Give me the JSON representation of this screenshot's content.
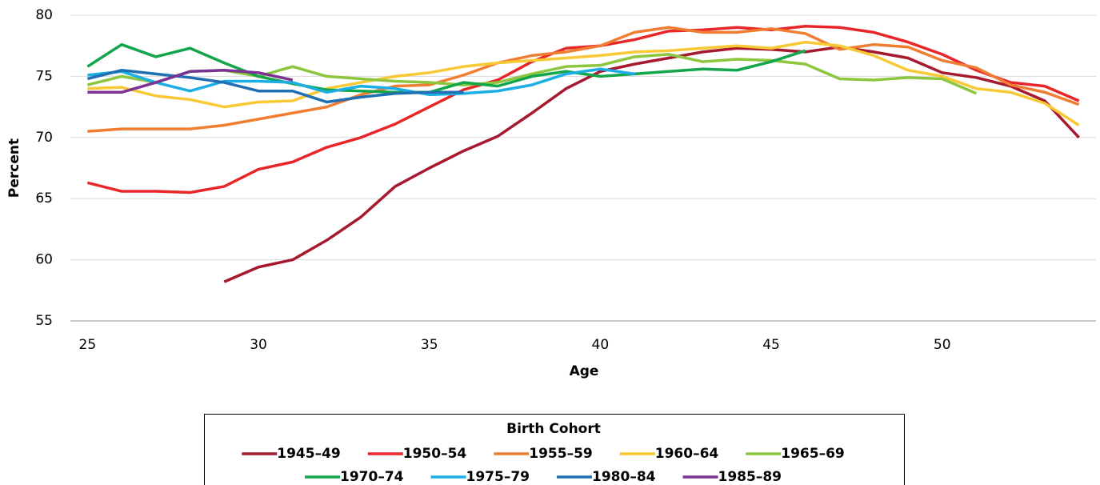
{
  "chart_data": {
    "type": "line",
    "y_label": "Percent",
    "x_label": "Age",
    "legend_title": "Birth Cohort",
    "x": [
      25,
      26,
      27,
      28,
      29,
      30,
      31,
      32,
      33,
      34,
      35,
      36,
      37,
      38,
      39,
      40,
      41,
      42,
      43,
      44,
      45,
      46,
      47,
      48,
      49,
      50,
      51,
      52,
      53,
      54
    ],
    "xlim": [
      24.5,
      54.5
    ],
    "xticks": [
      25,
      30,
      35,
      40,
      45,
      50
    ],
    "ylim": [
      55,
      80
    ],
    "yticks": [
      55,
      60,
      65,
      70,
      75,
      80
    ],
    "grid": true,
    "series": [
      {
        "name": "1945–49",
        "color": "#a6192e",
        "values": [
          null,
          null,
          null,
          null,
          58.2,
          59.4,
          60.0,
          61.6,
          63.5,
          66.0,
          67.5,
          68.9,
          70.1,
          72.0,
          74.0,
          75.4,
          76.0,
          76.5,
          77.0,
          77.3,
          77.2,
          77.0,
          77.4,
          77.0,
          76.5,
          75.3,
          74.9,
          74.2,
          73.0,
          70.0
        ]
      },
      {
        "name": "1950–54",
        "color": "#e8262a",
        "values": [
          66.3,
          65.6,
          65.6,
          65.5,
          66.0,
          67.4,
          68.0,
          69.2,
          70.0,
          71.1,
          72.5,
          73.9,
          74.7,
          76.2,
          77.3,
          77.5,
          78.0,
          78.7,
          78.8,
          79.0,
          78.8,
          79.1,
          79.0,
          78.6,
          77.8,
          76.8,
          75.5,
          74.5,
          74.2,
          73.0
        ]
      },
      {
        "name": "1955–59",
        "color": "#ef7d32",
        "values": [
          70.5,
          70.7,
          70.7,
          70.7,
          71.0,
          71.5,
          72.0,
          72.5,
          73.5,
          74.2,
          74.3,
          75.1,
          76.1,
          76.7,
          77.0,
          77.5,
          78.6,
          79.0,
          78.6,
          78.6,
          78.9,
          78.5,
          77.2,
          77.6,
          77.4,
          76.3,
          75.7,
          74.3,
          73.7,
          72.7
        ]
      },
      {
        "name": "1960–64",
        "color": "#f9c935",
        "values": [
          74.0,
          74.1,
          73.4,
          73.1,
          72.5,
          72.9,
          73.0,
          74.0,
          74.5,
          75.0,
          75.3,
          75.8,
          76.1,
          76.3,
          76.5,
          76.7,
          77.0,
          77.1,
          77.3,
          77.5,
          77.3,
          77.8,
          77.5,
          76.7,
          75.5,
          75.0,
          74.0,
          73.7,
          72.8,
          71.0
        ]
      },
      {
        "name": "1965–69",
        "color": "#8cc63f",
        "values": [
          74.3,
          75.0,
          74.5,
          75.4,
          75.5,
          75.0,
          75.8,
          75.0,
          74.8,
          74.6,
          74.5,
          74.3,
          74.5,
          75.2,
          75.8,
          75.9,
          76.6,
          76.8,
          76.2,
          76.4,
          76.3,
          76.0,
          74.8,
          74.7,
          74.9,
          74.8,
          73.6,
          null,
          null,
          null
        ]
      },
      {
        "name": "1970–74",
        "color": "#12a54a",
        "values": [
          75.8,
          77.6,
          76.6,
          77.3,
          76.1,
          75.0,
          74.4,
          73.9,
          73.8,
          73.7,
          73.7,
          74.5,
          74.2,
          75.0,
          75.4,
          75.0,
          75.2,
          75.4,
          75.6,
          75.5,
          76.2,
          77.1,
          null,
          null,
          null,
          null,
          null,
          null,
          null,
          null
        ]
      },
      {
        "name": "1975–79",
        "color": "#1aaee5",
        "values": [
          75.1,
          75.4,
          74.5,
          73.8,
          74.6,
          74.6,
          74.5,
          73.7,
          74.2,
          74.0,
          73.5,
          73.6,
          73.8,
          74.3,
          75.2,
          75.6,
          75.2,
          null,
          null,
          null,
          null,
          null,
          null,
          null,
          null,
          null,
          null,
          null,
          null,
          null
        ]
      },
      {
        "name": "1980–84",
        "color": "#1f6fb2",
        "values": [
          74.8,
          75.5,
          75.2,
          74.9,
          74.5,
          73.8,
          73.8,
          72.9,
          73.3,
          73.6,
          73.7,
          73.7,
          null,
          null,
          null,
          null,
          null,
          null,
          null,
          null,
          null,
          null,
          null,
          null,
          null,
          null,
          null,
          null,
          null,
          null
        ]
      },
      {
        "name": "1985–89",
        "color": "#7b3294",
        "values": [
          73.7,
          73.7,
          74.5,
          75.4,
          75.5,
          75.3,
          74.7,
          null,
          null,
          null,
          null,
          null,
          null,
          null,
          null,
          null,
          null,
          null,
          null,
          null,
          null,
          null,
          null,
          null,
          null,
          null,
          null,
          null,
          null,
          null
        ]
      }
    ]
  }
}
